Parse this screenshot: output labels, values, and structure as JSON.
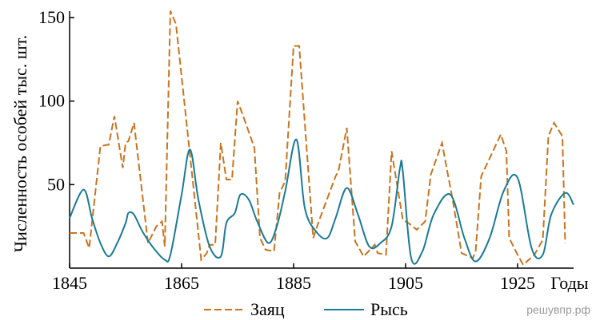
{
  "chart_data": {
    "type": "line",
    "y_label": "Численность особей тыс. шт.",
    "x_label": "Годы",
    "watermark": "решувпр.рф",
    "xlim": [
      1845,
      1935
    ],
    "xticks": [
      1845,
      1865,
      1885,
      1905,
      1925
    ],
    "ylim": [
      0,
      150
    ],
    "yticks": [
      50,
      100,
      150
    ],
    "series": [
      {
        "name": "Заяц",
        "color": "#c8741e",
        "dashed": true,
        "smooth": false,
        "x": [
          1845,
          1847.5,
          1848.5,
          1850.5,
          1852,
          1853,
          1854.5,
          1855,
          1855.5,
          1856.5,
          1859,
          1860.5,
          1861.5,
          1862,
          1863,
          1864,
          1868.5,
          1869.5,
          1870,
          1871,
          1872,
          1873,
          1874,
          1875,
          1876,
          1878,
          1879,
          1880,
          1881.5,
          1882.5,
          1883.5,
          1885,
          1886,
          1888.5,
          1889.5,
          1892.5,
          1893,
          1894.5,
          1896,
          1897.5,
          1899.5,
          1900,
          1901.5,
          1902.5,
          1904.5,
          1905.5,
          1907,
          1908.5,
          1909.5,
          1911.5,
          1913.5,
          1915,
          1917,
          1917.5,
          1918.5,
          1922,
          1923,
          1923.5,
          1925,
          1926,
          1928,
          1929.5,
          1930.5,
          1931.5,
          1933,
          1933.5
        ],
        "values": [
          21,
          21,
          12,
          73,
          74,
          91,
          60,
          75,
          76,
          87,
          15,
          25,
          28,
          13,
          154,
          146,
          5,
          9,
          14,
          14,
          75,
          53,
          53,
          100,
          91,
          72,
          18,
          11,
          10,
          45,
          52,
          133,
          133,
          18,
          28,
          55,
          58,
          84,
          16,
          7,
          14,
          9,
          8,
          70,
          29,
          27,
          23,
          28,
          56,
          75,
          39,
          9,
          6,
          10,
          55,
          80,
          70,
          18,
          8,
          2,
          8,
          17,
          79,
          87,
          79,
          15
        ]
      },
      {
        "name": "Рысь",
        "color": "#1a7a96",
        "dashed": false,
        "smooth": true,
        "x": [
          1845,
          1847.5,
          1849,
          1850.5,
          1852,
          1853.5,
          1855,
          1855.5,
          1856.5,
          1858,
          1860,
          1862,
          1863,
          1865,
          1866.5,
          1868,
          1870,
          1872,
          1873,
          1874.5,
          1875.5,
          1877,
          1878.5,
          1880.5,
          1882,
          1883.5,
          1885.5,
          1887,
          1889,
          1891,
          1892.5,
          1894.5,
          1896.5,
          1898.5,
          1900.5,
          1902.5,
          1904,
          1904.5,
          1906,
          1908,
          1910,
          1913,
          1915.5,
          1917.5,
          1920,
          1922.5,
          1925,
          1927.5,
          1929.5,
          1931,
          1933.5,
          1935
        ],
        "values": [
          30,
          47,
          30,
          15,
          7,
          15,
          27,
          33,
          32,
          22,
          12,
          5,
          8,
          44,
          71,
          41,
          13,
          7,
          27,
          33,
          44,
          41,
          28,
          15,
          25,
          46,
          77,
          36,
          22,
          18,
          30,
          48,
          32,
          13,
          15,
          25,
          60,
          58,
          6,
          10,
          32,
          44,
          18,
          4,
          18,
          46,
          54,
          12,
          8,
          32,
          45,
          38
        ]
      }
    ]
  }
}
